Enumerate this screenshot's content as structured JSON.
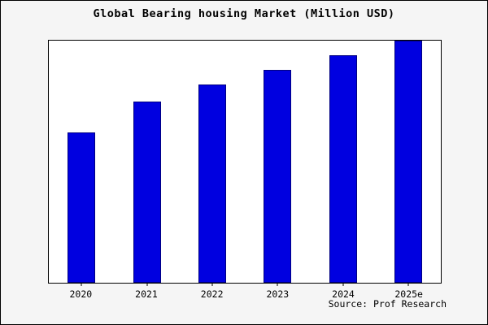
{
  "chart_data": {
    "type": "bar",
    "title": "Global Bearing housing Market (Million USD)",
    "categories": [
      "2020",
      "2021",
      "2022",
      "2023",
      "2024",
      "2025e"
    ],
    "values": [
      62,
      75,
      82,
      88,
      94,
      100
    ],
    "xlabel": "",
    "ylabel": "",
    "ylim": [
      0,
      100
    ],
    "grid": false,
    "legend": false,
    "bar_color": "#0000E0",
    "plot_background": "#ffffff",
    "figure_background": "#f5f5f5"
  },
  "source": "Source: Prof Research"
}
